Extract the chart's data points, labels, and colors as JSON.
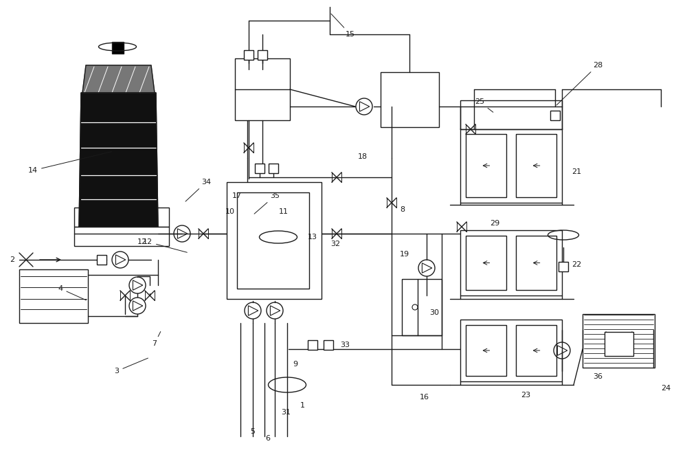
{
  "bg": "#ffffff",
  "lc": "#1a1a1a",
  "lw": 1.0,
  "figsize": [
    10.0,
    6.65
  ],
  "dpi": 100
}
